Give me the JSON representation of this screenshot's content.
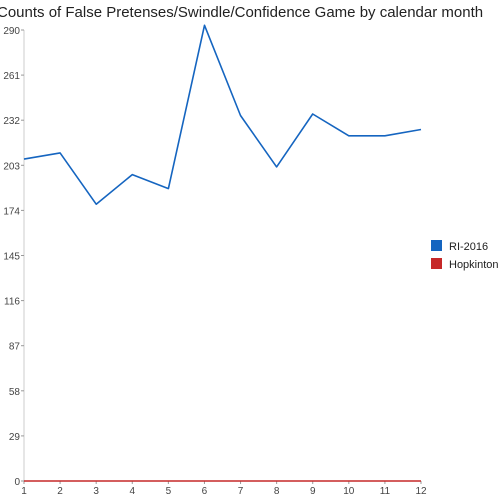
{
  "chart_data": {
    "type": "line",
    "title": "Counts of False Pretenses/Swindle/Confidence Game by calendar month",
    "xlabel": "",
    "ylabel": "",
    "x": [
      1,
      2,
      3,
      4,
      5,
      6,
      7,
      8,
      9,
      10,
      11,
      12
    ],
    "ylim": [
      0,
      290
    ],
    "yticks": [
      0,
      29,
      58,
      87,
      116,
      145,
      174,
      203,
      232,
      261,
      290
    ],
    "grid": false,
    "legend_position": "right",
    "series": [
      {
        "name": "RI-2016",
        "color": "#1565C0",
        "values": [
          207,
          211,
          178,
          197,
          188,
          293,
          235,
          202,
          236,
          222,
          222,
          226
        ]
      },
      {
        "name": "Hopkinton",
        "color": "#C62828",
        "values": [
          0,
          0,
          0,
          0,
          0,
          0,
          0,
          0,
          0,
          0,
          0,
          0
        ]
      }
    ]
  }
}
